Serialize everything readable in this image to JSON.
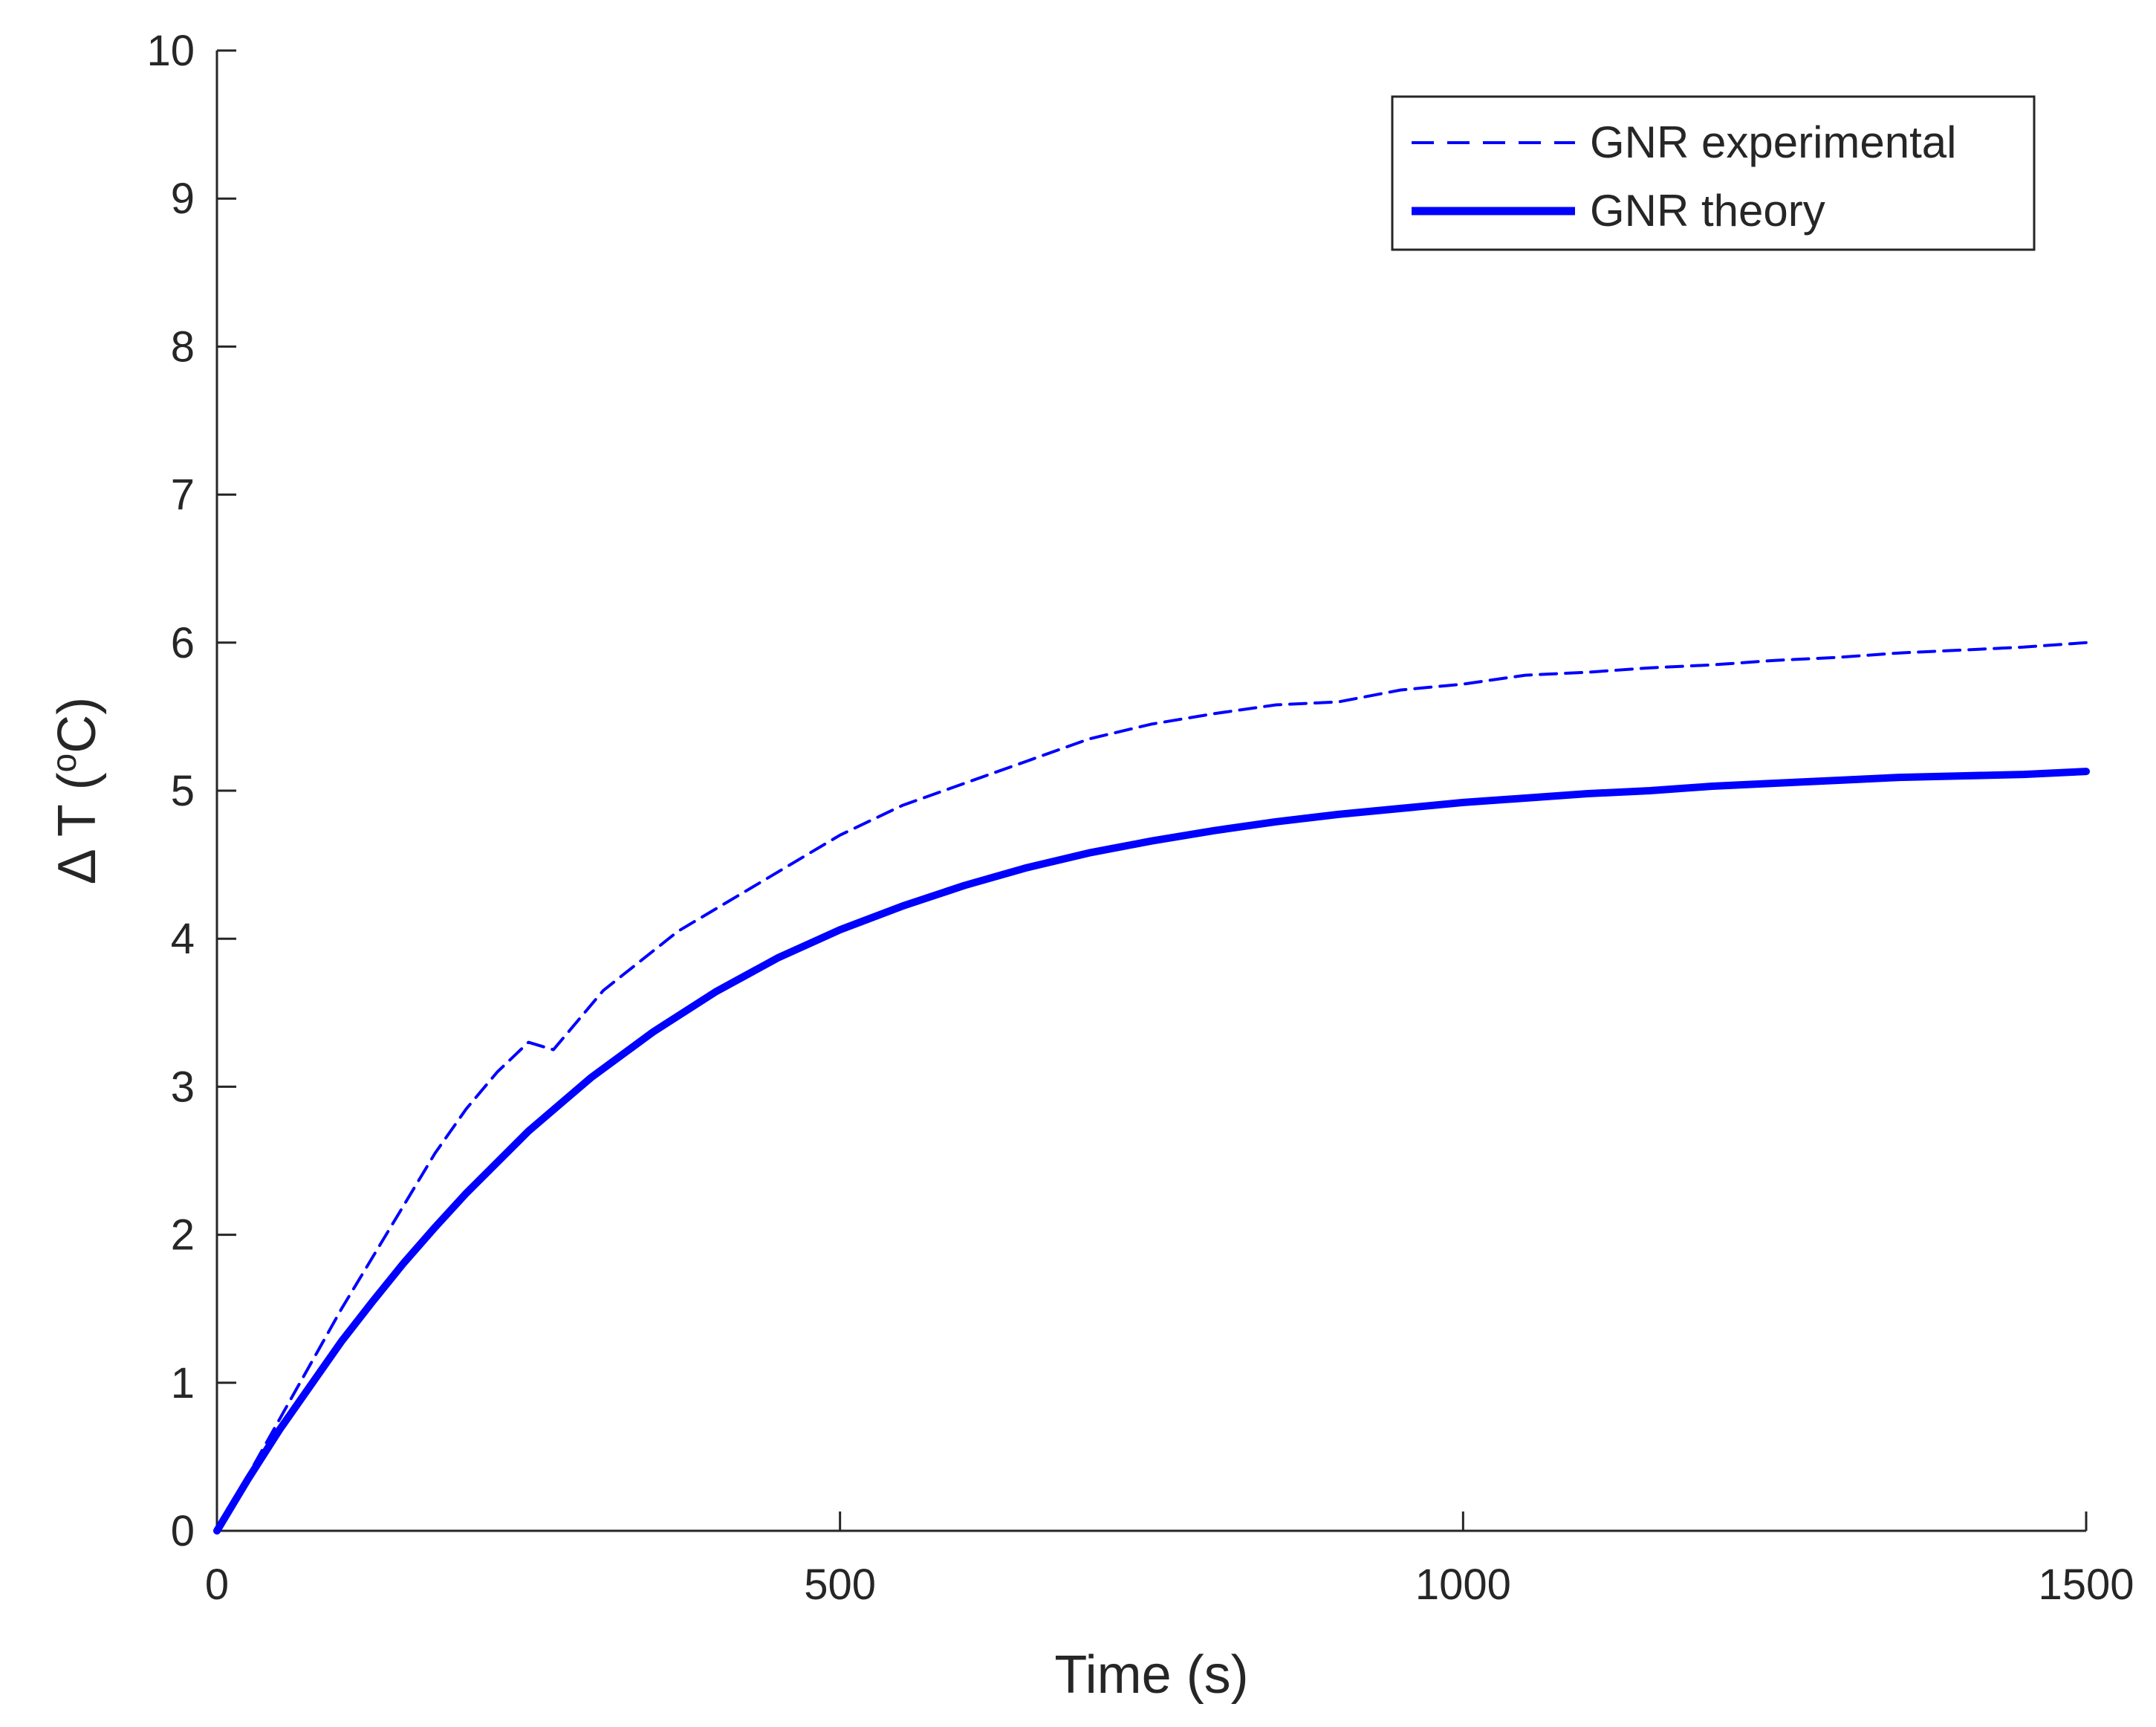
{
  "chart_data": {
    "type": "line",
    "xlabel": "Time (s)",
    "ylabel_main": "Δ T (",
    "ylabel_sup": "o",
    "ylabel_end": "C)",
    "xlim": [
      0,
      1500
    ],
    "ylim": [
      0,
      10
    ],
    "xticks": [
      0,
      500,
      1000,
      1500
    ],
    "yticks": [
      0,
      1,
      2,
      3,
      4,
      5,
      6,
      7,
      8,
      9,
      10
    ],
    "grid": false,
    "legend_position": "top-right",
    "series": [
      {
        "name": "GNR experimental",
        "style": "dashed",
        "color": "#0000ff",
        "x": [
          0,
          20,
          40,
          60,
          80,
          100,
          125,
          150,
          175,
          200,
          225,
          250,
          270,
          290,
          310,
          340,
          370,
          400,
          430,
          460,
          500,
          550,
          600,
          650,
          700,
          750,
          800,
          850,
          900,
          950,
          1000,
          1050,
          1100,
          1150,
          1200,
          1250,
          1300,
          1350,
          1400,
          1450,
          1500
        ],
        "y": [
          0,
          0.3,
          0.6,
          0.9,
          1.2,
          1.5,
          1.85,
          2.2,
          2.55,
          2.85,
          3.1,
          3.3,
          3.25,
          3.45,
          3.65,
          3.85,
          4.05,
          4.2,
          4.35,
          4.5,
          4.7,
          4.9,
          5.05,
          5.2,
          5.35,
          5.45,
          5.52,
          5.58,
          5.6,
          5.68,
          5.72,
          5.78,
          5.8,
          5.83,
          5.85,
          5.88,
          5.9,
          5.93,
          5.95,
          5.97,
          6.0
        ]
      },
      {
        "name": "GNR theory",
        "style": "solid",
        "color": "#0000ff",
        "x": [
          0,
          25,
          50,
          75,
          100,
          125,
          150,
          175,
          200,
          250,
          300,
          350,
          400,
          450,
          500,
          550,
          600,
          650,
          700,
          750,
          800,
          850,
          900,
          950,
          1000,
          1050,
          1100,
          1150,
          1200,
          1250,
          1300,
          1350,
          1400,
          1450,
          1500
        ],
        "y": [
          0,
          0.35,
          0.68,
          0.98,
          1.28,
          1.55,
          1.81,
          2.05,
          2.28,
          2.7,
          3.06,
          3.37,
          3.64,
          3.87,
          4.06,
          4.22,
          4.36,
          4.48,
          4.58,
          4.66,
          4.73,
          4.79,
          4.84,
          4.88,
          4.92,
          4.95,
          4.98,
          5.0,
          5.03,
          5.05,
          5.07,
          5.09,
          5.1,
          5.11,
          5.13
        ]
      }
    ]
  }
}
